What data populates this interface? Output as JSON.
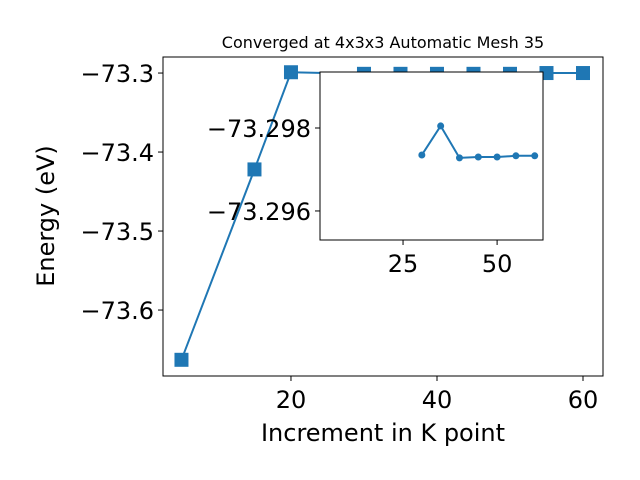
{
  "chart_data": [
    {
      "type": "line",
      "title": "Converged at 4x3x3 Automatic Mesh 35",
      "x_label": "Increment in K point",
      "y_label": "Energy (eV)",
      "x": [
        5,
        15,
        20,
        30,
        35,
        40,
        45,
        50,
        55,
        60
      ],
      "series": [
        {
          "color": "#1f77b4",
          "marker": "square",
          "values": [
            -73.663,
            -73.422,
            -73.299,
            -73.301,
            -73.301,
            -73.301,
            -73.301,
            -73.301,
            -73.3,
            -73.3
          ]
        }
      ],
      "xlim": [
        2.47,
        62.74
      ],
      "xticks": [
        20,
        40,
        60
      ],
      "ylim": [
        -73.6835,
        -73.2797
      ],
      "yticks": [
        {
          "value": -73.6,
          "label": "−73.6"
        },
        {
          "value": -73.5,
          "label": "−73.5"
        },
        {
          "value": -73.4,
          "label": "−73.4"
        },
        {
          "value": -73.3,
          "label": "−73.3"
        }
      ]
    },
    {
      "type": "line",
      "x": [
        30,
        35,
        40,
        45,
        50,
        55,
        60
      ],
      "series": [
        {
          "color": "#1f77b4",
          "marker": "circle",
          "values": [
            -73.29735,
            -73.29805,
            -73.29728,
            -73.2973,
            -73.2973,
            -73.29733,
            -73.29733
          ]
        }
      ],
      "xlim": [
        2.93,
        62.2
      ],
      "xticks": [
        25,
        50
      ],
      "ylim": [
        -73.2953,
        -73.29935
      ],
      "yticks": [
        {
          "value": -73.298,
          "label": "−73.298"
        },
        {
          "value": -73.296,
          "label": "−73.296"
        }
      ]
    }
  ]
}
